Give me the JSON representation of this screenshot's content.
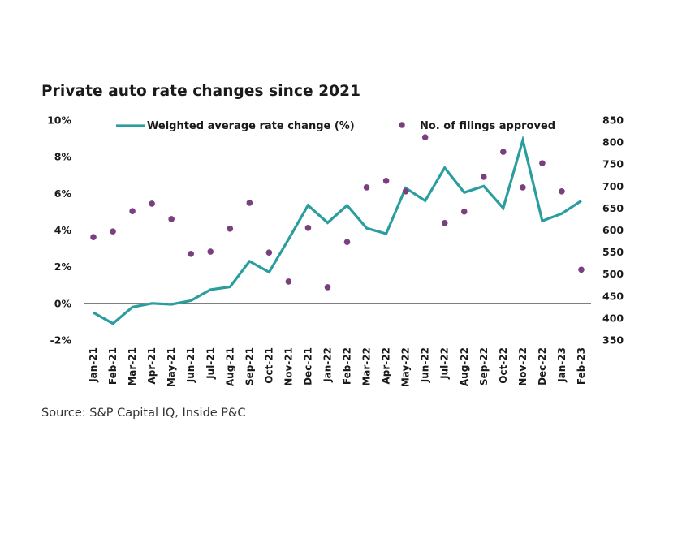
{
  "chart_data": {
    "type": "line",
    "title": "Private auto rate changes since 2021",
    "source": "Source: S&P Capital IQ, Inside P&C",
    "categories": [
      "Jan-21",
      "Feb-21",
      "Mar-21",
      "Apr-21",
      "May-21",
      "Jun-21",
      "Jul-21",
      "Aug-21",
      "Sep-21",
      "Oct-21",
      "Nov-21",
      "Dec-21",
      "Jan-22",
      "Feb-22",
      "Mar-22",
      "Apr-22",
      "May-22",
      "Jun-22",
      "Jul-22",
      "Aug-22",
      "Sep-22",
      "Oct-22",
      "Nov-22",
      "Dec-22",
      "Jan-23",
      "Feb-23"
    ],
    "series": [
      {
        "name": "Weighted average rate change (%)",
        "type": "line",
        "axis": "left",
        "color": "#2a9d9f",
        "values": [
          -0.5,
          -1.1,
          -0.2,
          0.0,
          -0.05,
          0.15,
          0.75,
          0.9,
          2.3,
          1.7,
          3.5,
          5.35,
          4.4,
          5.35,
          4.1,
          3.8,
          6.3,
          5.6,
          7.4,
          6.05,
          6.4,
          5.2,
          8.9,
          4.5,
          4.9,
          5.6
        ]
      },
      {
        "name": "No. of filings approved",
        "type": "scatter",
        "axis": "right",
        "color": "#7b3f80",
        "values": [
          584,
          597,
          643,
          660,
          625,
          546,
          551,
          603,
          662,
          549,
          483,
          605,
          470,
          573,
          697,
          712,
          688,
          811,
          616,
          642,
          721,
          778,
          697,
          752,
          688,
          510
        ]
      }
    ],
    "left_axis": {
      "label": "",
      "ylim": [
        -2,
        10
      ],
      "ticks": [
        10,
        8,
        6,
        4,
        2,
        0,
        -2
      ],
      "tick_labels": [
        "10%",
        "8%",
        "6%",
        "4%",
        "2%",
        "0%",
        "-2%"
      ]
    },
    "right_axis": {
      "label": "",
      "ylim": [
        350,
        850
      ],
      "ticks": [
        850,
        800,
        750,
        700,
        650,
        600,
        550,
        500,
        450,
        400,
        350
      ],
      "tick_labels": [
        "850",
        "800",
        "750",
        "700",
        "650",
        "600",
        "550",
        "500",
        "450",
        "400",
        "350"
      ]
    },
    "xlabel": "",
    "grid": false,
    "zero_line": true,
    "legend": {
      "placement": "top",
      "entries": [
        "Weighted average rate change (%)",
        "No. of filings approved"
      ]
    }
  }
}
